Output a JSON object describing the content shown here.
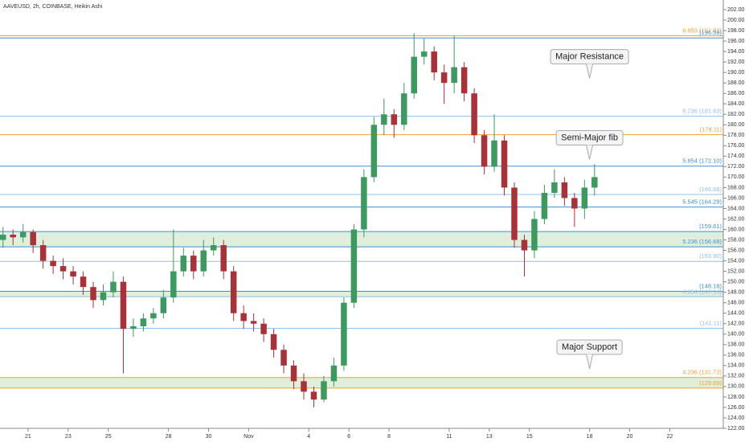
{
  "chart_data": {
    "type": "candlestick",
    "title": "AAVEUSD, 2h, COINBASE, Heikin Ashi",
    "up_color": "#3c9a5f",
    "down_color": "#a83238",
    "zone_color": "#d9ecd5",
    "xlim": [
      19.6,
      55.67
    ],
    "ylim": [
      122,
      202
    ],
    "xticks": [
      21,
      23,
      25,
      28,
      30,
      {
        "value": 32,
        "label": "Nov"
      },
      {
        "value": 35,
        "label": "4"
      },
      {
        "value": 37,
        "label": "6"
      },
      {
        "value": 39,
        "label": "8"
      },
      {
        "value": 42,
        "label": "11"
      },
      {
        "value": 44,
        "label": "13"
      },
      {
        "value": 46,
        "label": "15"
      },
      {
        "value": 49,
        "label": "18"
      },
      {
        "value": 51,
        "label": "20"
      },
      {
        "value": 53,
        "label": "22"
      }
    ],
    "yticks": [
      {
        "value": 122,
        "label": "122.00"
      },
      {
        "value": 124,
        "label": "124.00"
      },
      {
        "value": 126,
        "label": "126.00"
      },
      {
        "value": 128,
        "label": "128.00"
      },
      {
        "value": 130,
        "label": "130.00"
      },
      {
        "value": 132,
        "label": "132.00"
      },
      {
        "value": 134,
        "label": "134.00"
      },
      {
        "value": 136,
        "label": "136.00"
      },
      {
        "value": 138,
        "label": "138.00"
      },
      {
        "value": 140,
        "label": "140.00"
      },
      {
        "value": 142,
        "label": "142.00"
      },
      {
        "value": 144,
        "label": "144.00"
      },
      {
        "value": 146,
        "label": "146.00"
      },
      {
        "value": 148,
        "label": "148.00"
      },
      {
        "value": 150,
        "label": "150.00"
      },
      {
        "value": 152,
        "label": "152.00"
      },
      {
        "value": 154,
        "label": "154.00"
      },
      {
        "value": 156,
        "label": "156.00"
      },
      {
        "value": 158,
        "label": "158.00"
      },
      {
        "value": 160,
        "label": "160.00"
      },
      {
        "value": 162,
        "label": "162.00"
      },
      {
        "value": 164,
        "label": "164.00"
      },
      {
        "value": 166,
        "label": "166.00"
      },
      {
        "value": 168,
        "label": "168.00"
      },
      {
        "value": 170,
        "label": "170.00"
      },
      {
        "value": 172,
        "label": "172.00"
      },
      {
        "value": 174,
        "label": "174.00"
      },
      {
        "value": 176,
        "label": "176.00"
      },
      {
        "value": 178,
        "label": "178.00"
      },
      {
        "value": 180,
        "label": "180.00"
      },
      {
        "value": 182,
        "label": "182.00"
      },
      {
        "value": 184,
        "label": "184.00"
      },
      {
        "value": 186,
        "label": "186.00"
      },
      {
        "value": 188,
        "label": "188.00"
      },
      {
        "value": 190,
        "label": "190.00"
      },
      {
        "value": 192,
        "label": "192.00"
      },
      {
        "value": 194,
        "label": "194.00"
      },
      {
        "value": 196,
        "label": "196.00"
      },
      {
        "value": 198,
        "label": "198.00"
      },
      {
        "value": 200,
        "label": "200.00"
      },
      {
        "value": 202,
        "label": "202.00"
      }
    ],
    "x": [
      19.75,
      20.25,
      20.75,
      21.25,
      21.75,
      22.25,
      22.75,
      23.25,
      23.75,
      24.25,
      24.75,
      25.25,
      25.75,
      26.25,
      26.75,
      27.25,
      27.75,
      28.25,
      28.75,
      29.25,
      29.75,
      30.25,
      30.75,
      31.25,
      31.75,
      32.25,
      32.75,
      33.25,
      33.75,
      34.25,
      34.75,
      35.25,
      35.75,
      36.25,
      36.75,
      37.25,
      37.75,
      38.25,
      38.75,
      39.25,
      39.75,
      40.25,
      40.75,
      41.25,
      41.75,
      42.25,
      42.75,
      43.25,
      43.75,
      44.25,
      44.75,
      45.25,
      45.75,
      46.25,
      46.75,
      47.25,
      47.75,
      48.25,
      48.75,
      49.25
    ],
    "open": [
      158,
      159,
      158.5,
      159.5,
      157,
      154,
      153,
      152,
      151,
      149,
      146.5,
      148,
      150,
      141,
      141.5,
      143,
      144,
      147,
      152,
      155,
      152,
      156,
      157,
      152,
      144,
      142.5,
      142,
      140,
      137,
      134,
      131,
      129,
      127.5,
      131,
      134,
      146,
      160,
      170,
      180,
      182,
      180,
      186,
      193,
      194,
      190,
      188,
      191,
      186,
      178,
      172,
      177,
      168,
      158,
      156,
      162,
      167,
      169,
      166,
      164,
      168
    ],
    "high": [
      160.5,
      160,
      161,
      160,
      158,
      155,
      154.5,
      153,
      152,
      150,
      149.5,
      152,
      151,
      143,
      144,
      145,
      148.5,
      160,
      156.5,
      156,
      158,
      158.5,
      158,
      153,
      145.5,
      144,
      143,
      141,
      138,
      135,
      132.5,
      130,
      132,
      135.5,
      147,
      161,
      171.5,
      181.5,
      185,
      183,
      188,
      197.5,
      196.5,
      195,
      191.5,
      197,
      192,
      187,
      179,
      182,
      178,
      169,
      159,
      163.5,
      168.5,
      171.5,
      170,
      167,
      169.5,
      172.5
    ],
    "low": [
      156.5,
      157,
      157.5,
      155.5,
      152.5,
      151.5,
      150.5,
      149.5,
      147.5,
      145,
      145.5,
      147,
      132.5,
      139.5,
      140.5,
      142,
      143,
      146,
      151,
      150.5,
      151,
      155,
      150.5,
      142.5,
      141,
      140.5,
      138.5,
      135.5,
      132.5,
      129.5,
      127.5,
      126,
      127,
      130,
      133,
      145,
      158.5,
      169,
      178,
      177.5,
      179,
      185,
      191.5,
      188.5,
      184,
      186,
      184.5,
      176.5,
      170.5,
      171,
      166.5,
      156.5,
      151,
      154.5,
      161,
      166,
      164.5,
      160.5,
      162,
      166.5
    ],
    "close": [
      159,
      158.5,
      159.5,
      157,
      154,
      153,
      152,
      151,
      149,
      146.5,
      148,
      150,
      141,
      141.5,
      143,
      144,
      147,
      152,
      155,
      152,
      156,
      157,
      152,
      144,
      142.5,
      142,
      140,
      137,
      134,
      131,
      129,
      127.5,
      131,
      134,
      146,
      160,
      170,
      180,
      182,
      180,
      186,
      193,
      194,
      190,
      188,
      191,
      186,
      178,
      172,
      177,
      168,
      158,
      156,
      162,
      167,
      169,
      166,
      164,
      168,
      170
    ],
    "levels": [
      {
        "label": "6.853 (197.02)",
        "value": 197.02,
        "color": "#f0a030"
      },
      {
        "label": "(196.59)",
        "value": 196.59,
        "color": "#3f8fd8"
      },
      {
        "label": "6.236 (181.63)",
        "value": 181.63,
        "color": "#8ec0ea"
      },
      {
        "label": "(178.11)",
        "value": 178.11,
        "color": "#f0a030"
      },
      {
        "label": "5.854 (172.10)",
        "value": 172.1,
        "color": "#3f8fd8"
      },
      {
        "label": "(166.68)",
        "value": 166.68,
        "color": "#8ec0ea"
      },
      {
        "label": "5.545 (164.29)",
        "value": 164.29,
        "color": "#3f8fd8"
      },
      {
        "label": "(159.61)",
        "value": 159.61,
        "color": "#3f8fd8"
      },
      {
        "label": "5.236 (156.68)",
        "value": 156.68,
        "color": "#3f8fd8"
      },
      {
        "label": "(153.90)",
        "value": 153.9,
        "color": "#8ec0ea"
      },
      {
        "label": "(148.18)",
        "value": 148.18,
        "color": "#3f8fd8"
      },
      {
        "label": "4.854 (147.14)",
        "value": 147.14,
        "color": "#8ec0ea"
      },
      {
        "label": "(141.11)",
        "value": 141.11,
        "color": "#8ec0ea"
      },
      {
        "label": "4.236 (131.72)",
        "value": 131.72,
        "color": "#f0a030"
      },
      {
        "label": "(129.69)",
        "value": 129.69,
        "color": "#f0a030"
      }
    ],
    "zones": [
      {
        "from": 156.68,
        "to": 159.61
      },
      {
        "from": 147.14,
        "to": 148.18
      },
      {
        "from": 129.69,
        "to": 131.72
      }
    ],
    "annotations": [
      {
        "text": "Major Resistance",
        "x": 49,
        "y": 193
      },
      {
        "text": "Semi-Major fib",
        "x": 49,
        "y": 177.5
      },
      {
        "text": "Major Support",
        "x": 49,
        "y": 137.5
      }
    ]
  }
}
